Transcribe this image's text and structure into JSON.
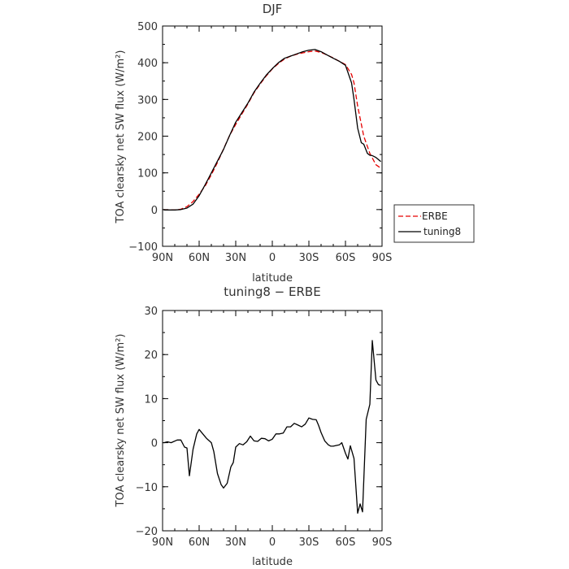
{
  "chart_data": [
    {
      "type": "line",
      "title": "DJF",
      "xlabel": "latitude",
      "ylabel": "TOA clearsky net SW flux (W/m²)",
      "xlim": [
        90,
        -90
      ],
      "ylim": [
        -100,
        500
      ],
      "xticks": [
        90,
        60,
        30,
        0,
        -30,
        -60,
        -90
      ],
      "xtick_labels": [
        "90N",
        "60N",
        "30N",
        "0",
        "30S",
        "60S",
        "90S"
      ],
      "yticks": [
        -100,
        0,
        100,
        200,
        300,
        400,
        500
      ],
      "ytick_labels": [
        "−100",
        "0",
        "100",
        "200",
        "300",
        "400",
        "500"
      ],
      "legend_position": "right",
      "series": [
        {
          "name": "ERBE",
          "color": "#e60000",
          "dash": "dashed",
          "x": [
            89,
            85,
            80,
            75,
            70,
            65,
            60,
            55,
            50,
            45,
            40,
            35,
            30,
            25,
            20,
            15,
            10,
            5,
            0,
            -5,
            -10,
            -15,
            -20,
            -25,
            -30,
            -35,
            -40,
            -45,
            -50,
            -55,
            -60,
            -65,
            -67,
            -70,
            -75,
            -80,
            -85,
            -89
          ],
          "y": [
            -1,
            -1,
            -1,
            1,
            8,
            22,
            42,
            65,
            95,
            128,
            165,
            202,
            232,
            260,
            288,
            318,
            342,
            364,
            383,
            398,
            410,
            418,
            423,
            427,
            430,
            432,
            428,
            421,
            413,
            404,
            395,
            368,
            345,
            282,
            200,
            153,
            122,
            113
          ]
        },
        {
          "name": "tuning8",
          "color": "#000000",
          "dash": "solid",
          "x": [
            89,
            85,
            80,
            75,
            70,
            65,
            60,
            55,
            50,
            45,
            40,
            35,
            30,
            25,
            20,
            15,
            10,
            5,
            0,
            -5,
            -10,
            -15,
            -20,
            -25,
            -30,
            -35,
            -40,
            -45,
            -50,
            -55,
            -60,
            -65,
            -67,
            -70,
            -73,
            -75,
            -78,
            -80,
            -82,
            -85,
            -89
          ],
          "y": [
            -1,
            -1,
            -1,
            0,
            4,
            15,
            38,
            68,
            100,
            132,
            164,
            202,
            238,
            264,
            290,
            320,
            344,
            366,
            384,
            400,
            412,
            418,
            424,
            430,
            434,
            436,
            430,
            421,
            412,
            404,
            393,
            345,
            300,
            222,
            182,
            178,
            153,
            148,
            147,
            142,
            131
          ]
        }
      ]
    },
    {
      "type": "line",
      "title": "tuning8 − ERBE",
      "xlabel": "latitude",
      "ylabel": "TOA clearsky net SW flux (W/m²)",
      "xlim": [
        90,
        -90
      ],
      "ylim": [
        -20,
        30
      ],
      "xticks": [
        90,
        60,
        30,
        0,
        -30,
        -60,
        -90
      ],
      "xtick_labels": [
        "90N",
        "60N",
        "30N",
        "0",
        "30S",
        "60S",
        "90S"
      ],
      "yticks": [
        -20,
        -10,
        0,
        10,
        20,
        30
      ],
      "ytick_labels": [
        "−20",
        "−10",
        "0",
        "10",
        "20",
        "30"
      ],
      "series": [
        {
          "name": "tuning8 − ERBE",
          "color": "#000000",
          "dash": "solid",
          "x": [
            89,
            86,
            83,
            78,
            75,
            72,
            70,
            68,
            65,
            62,
            60,
            57,
            54,
            50,
            48,
            45,
            42,
            40,
            37,
            34,
            32,
            30,
            27,
            24,
            21,
            18,
            15,
            12,
            9,
            6,
            3,
            0,
            -3,
            -6,
            -9,
            -12,
            -15,
            -18,
            -21,
            -24,
            -27,
            -30,
            -33,
            -36,
            -38,
            -40,
            -43,
            -46,
            -48,
            -50,
            -53,
            -55,
            -57,
            -60,
            -62,
            -64,
            -67,
            -70,
            -72,
            -74,
            -77,
            -80,
            -82,
            -85,
            -87,
            -89
          ],
          "y": [
            0,
            0.2,
            0,
            0.6,
            0.6,
            -1,
            -1.2,
            -7.5,
            -1.5,
            2,
            3,
            2,
            1,
            0,
            -2,
            -7,
            -9.5,
            -10.3,
            -9.2,
            -5.5,
            -4.5,
            -1,
            -0.2,
            -0.5,
            0.2,
            1.5,
            0.4,
            0.3,
            1,
            0.9,
            0.4,
            0.8,
            2,
            2,
            2.2,
            3.6,
            3.6,
            4.4,
            4,
            3.6,
            4.2,
            5.6,
            5.3,
            5.2,
            3.9,
            2.3,
            0.4,
            -0.5,
            -0.8,
            -0.8,
            -0.6,
            -0.5,
            0,
            -2.4,
            -3.7,
            -0.7,
            -3.6,
            -16,
            -13.9,
            -15.7,
            5.3,
            8.7,
            23.2,
            14.2,
            13.2,
            13
          ]
        }
      ]
    }
  ],
  "legend": {
    "erbe_label": "ERBE",
    "tuning8_label": "tuning8"
  }
}
